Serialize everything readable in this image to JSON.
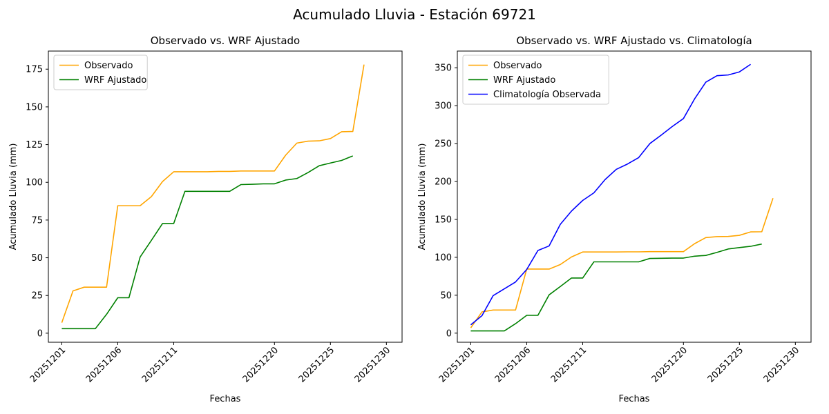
{
  "figure": {
    "suptitle": "Acumulado Lluvia - Estación 69721"
  },
  "chart_data": [
    {
      "type": "line",
      "title": "Observado vs. WRF Ajustado",
      "xlabel": "Fechas",
      "ylabel": "Acumulado Lluvia (mm)",
      "x_note": "x values are December 2025 dates, given as day of month",
      "x": [
        1,
        2,
        3,
        4,
        5,
        6,
        7,
        8,
        9,
        10,
        11,
        12,
        13,
        14,
        15,
        16,
        17,
        18,
        19,
        20,
        21,
        22,
        23,
        24,
        25,
        26,
        27,
        28,
        29,
        30
      ],
      "xlim_days": [
        -0.2,
        31.4
      ],
      "ylim": [
        -6,
        187
      ],
      "xticks": [
        {
          "day": 1,
          "label": "20251201"
        },
        {
          "day": 6,
          "label": "20251206"
        },
        {
          "day": 11,
          "label": "20251211"
        },
        {
          "day": 20,
          "label": "20251220"
        },
        {
          "day": 25,
          "label": "20251225"
        },
        {
          "day": 30,
          "label": "20251230"
        }
      ],
      "yticks": [
        0,
        25,
        50,
        75,
        100,
        125,
        150,
        175
      ],
      "legend": "top-left",
      "series": [
        {
          "name": "Observado",
          "color": "#ffa500",
          "values": [
            7,
            28,
            30.5,
            30.5,
            30.5,
            84.5,
            84.5,
            84.5,
            90.5,
            100.5,
            107,
            107,
            107,
            107,
            107.2,
            107.2,
            107.5,
            107.5,
            107.5,
            107.5,
            118,
            126,
            127.3,
            127.5,
            129,
            133.5,
            133.7,
            178,
            null,
            null
          ]
        },
        {
          "name": "WRF Ajustado",
          "color": "#008000",
          "values": [
            3,
            3,
            3,
            3,
            12.5,
            23.5,
            23.5,
            50.5,
            61.5,
            72.7,
            72.7,
            94,
            94,
            94,
            94,
            94,
            98.5,
            98.7,
            99,
            99,
            101.5,
            102.5,
            106.5,
            111,
            112.8,
            114.5,
            117.5,
            null,
            null,
            null
          ]
        }
      ]
    },
    {
      "type": "line",
      "title": "Observado vs. WRF Ajustado vs. Climatología",
      "xlabel": "Fechas",
      "ylabel": "Acumulado Lluvia (mm)",
      "x_note": "x values are December 2025 dates, given as day of month",
      "x": [
        1,
        2,
        3,
        4,
        5,
        6,
        7,
        8,
        9,
        10,
        11,
        12,
        13,
        14,
        15,
        16,
        17,
        18,
        19,
        20,
        21,
        22,
        23,
        24,
        25,
        26,
        27,
        28,
        29,
        30
      ],
      "xlim_days": [
        -0.2,
        31.4
      ],
      "ylim": [
        -12,
        372
      ],
      "xticks": [
        {
          "day": 1,
          "label": "20251201"
        },
        {
          "day": 6,
          "label": "20251206"
        },
        {
          "day": 11,
          "label": "20251211"
        },
        {
          "day": 20,
          "label": "20251220"
        },
        {
          "day": 25,
          "label": "20251225"
        },
        {
          "day": 30,
          "label": "20251230"
        }
      ],
      "yticks": [
        0,
        50,
        100,
        150,
        200,
        250,
        300,
        350
      ],
      "legend": "top-left",
      "series": [
        {
          "name": "Observado",
          "color": "#ffa500",
          "values": [
            7,
            28,
            30.5,
            30.5,
            30.5,
            84.5,
            84.5,
            84.5,
            90.5,
            100.5,
            107,
            107,
            107,
            107,
            107.2,
            107.2,
            107.5,
            107.5,
            107.5,
            107.5,
            118,
            126,
            127.3,
            127.5,
            129,
            133.5,
            133.7,
            178,
            null,
            null
          ]
        },
        {
          "name": "WRF Ajustado",
          "color": "#008000",
          "values": [
            3,
            3,
            3,
            3,
            12.5,
            23.5,
            23.5,
            50.5,
            61.5,
            72.7,
            72.7,
            94,
            94,
            94,
            94,
            94,
            98.5,
            98.7,
            99,
            99,
            101.5,
            102.5,
            106.5,
            111,
            112.8,
            114.5,
            117.5,
            null,
            null,
            null
          ]
        },
        {
          "name": "Climatología Observada",
          "color": "#0000ff",
          "values": [
            11,
            23,
            49.5,
            58.5,
            67.5,
            84,
            109,
            115,
            143.5,
            161,
            175,
            185,
            202.5,
            216,
            223,
            231.5,
            250,
            261,
            272.5,
            283,
            309,
            331,
            339.5,
            340.5,
            344.5,
            354.5,
            null,
            null,
            null,
            null
          ]
        }
      ]
    }
  ]
}
